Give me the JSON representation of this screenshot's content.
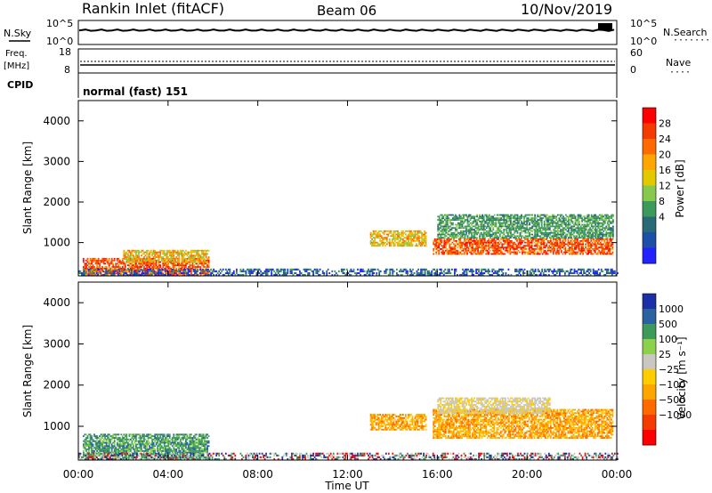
{
  "header": {
    "station": "Rankin Inlet (fitACF)",
    "beam": "Beam 06",
    "date": "10/Nov/2019"
  },
  "panels": {
    "nsky": {
      "label": "N.Sky",
      "ticks_left": [
        "10^5",
        "10^0"
      ],
      "ticks_right": [
        "10^5",
        "10^0"
      ],
      "right_label": "N.Search",
      "right_dots": "·······"
    },
    "freq": {
      "label_top": "Freq.",
      "label_unit": "[MHz]",
      "ticks_left": [
        "18",
        "8"
      ],
      "ticks_right": [
        "60",
        "0"
      ],
      "right_label": "Nave",
      "right_dots": "····"
    },
    "cpid": {
      "label": "CPID",
      "text": "normal (fast) 151"
    }
  },
  "chart_data": [
    {
      "type": "heatmap",
      "title": "",
      "ylabel": "Slant Range [km]",
      "xlabel": "",
      "ylim": [
        180,
        4500
      ],
      "yticks": [
        "4000",
        "3000",
        "2000",
        "1000"
      ],
      "xticks": [
        "00:00",
        "04:00",
        "08:00",
        "12:00",
        "16:00",
        "20:00",
        "00:00"
      ],
      "colorbar": {
        "label": "Power [dB]",
        "ticks": [
          "28",
          "24",
          "20",
          "16",
          "12",
          "8",
          "4"
        ],
        "colors": [
          "#ff0000",
          "#f43b00",
          "#ff6a00",
          "#ffa500",
          "#e3c800",
          "#86c94c",
          "#3c9a5a",
          "#2a6a78",
          "#1e4fa8",
          "#2222ff"
        ]
      },
      "regions": [
        {
          "t": [
            0.2,
            5.8
          ],
          "r": [
            180,
            600
          ],
          "level": "high"
        },
        {
          "t": [
            2.0,
            5.8
          ],
          "r": [
            500,
            820
          ],
          "level": "mid"
        },
        {
          "t": [
            13.0,
            15.5
          ],
          "r": [
            900,
            1300
          ],
          "level": "mid"
        },
        {
          "t": [
            15.8,
            23.8
          ],
          "r": [
            700,
            1100
          ],
          "level": "high"
        },
        {
          "t": [
            16.0,
            23.8
          ],
          "r": [
            1100,
            1700
          ],
          "level": "low"
        },
        {
          "t": [
            0.0,
            24.0
          ],
          "r": [
            180,
            330
          ],
          "level": "ground"
        }
      ]
    },
    {
      "type": "heatmap",
      "title": "",
      "ylabel": "Slant Range [km]",
      "xlabel": "Time UT",
      "ylim": [
        180,
        4500
      ],
      "yticks": [
        "4000",
        "3000",
        "2000",
        "1000"
      ],
      "xticks": [
        "00:00",
        "04:00",
        "08:00",
        "12:00",
        "16:00",
        "20:00",
        "00:00"
      ],
      "colorbar": {
        "label": "Velocity [m s⁻¹]",
        "ticks": [
          "1000",
          "500",
          "100",
          "25",
          "−25",
          "−100",
          "−500",
          "−1000"
        ],
        "colors": [
          "#1c2fa8",
          "#2a62a0",
          "#3c9a5a",
          "#8bd14a",
          "#c8c8c0",
          "#ffcc00",
          "#ffa500",
          "#ff6a00",
          "#f43b00",
          "#ff0000"
        ]
      },
      "regions": [
        {
          "t": [
            0.2,
            5.8
          ],
          "r": [
            180,
            820
          ],
          "level": "green"
        },
        {
          "t": [
            13.0,
            15.5
          ],
          "r": [
            900,
            1300
          ],
          "level": "orange"
        },
        {
          "t": [
            15.8,
            23.8
          ],
          "r": [
            700,
            1400
          ],
          "level": "orange"
        },
        {
          "t": [
            16.0,
            21.0
          ],
          "r": [
            1300,
            1700
          ],
          "level": "grey"
        },
        {
          "t": [
            0.0,
            24.0
          ],
          "r": [
            180,
            330
          ],
          "level": "ground"
        }
      ]
    }
  ]
}
